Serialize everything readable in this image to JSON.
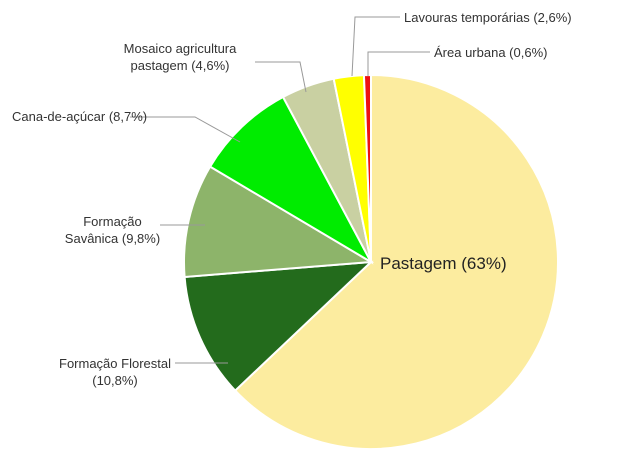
{
  "chart_data": {
    "type": "pie",
    "categories": [
      "Pastagem (63%)",
      "Formação Florestal (10,8%)",
      "Formação Savânica (9,8%)",
      "Cana-de-açúcar (8,7%)",
      "Mosaico agricultura pastagem (4,6%)",
      "Lavouras temporárias (2,6%)",
      "Área urbana (0,6%)"
    ],
    "values": [
      63,
      10.8,
      9.8,
      8.7,
      4.6,
      2.6,
      0.6
    ],
    "colors": [
      "#fcec9f",
      "#236b1c",
      "#8db46a",
      "#00ec00",
      "#c9d0a2",
      "#ffff00",
      "#ee1111"
    ]
  }
}
